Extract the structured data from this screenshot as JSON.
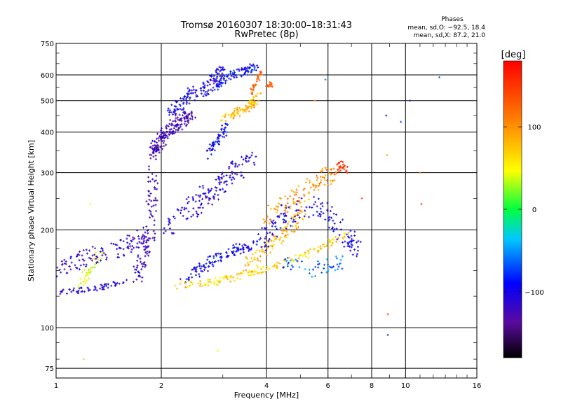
{
  "header": {
    "title_line1": "Tromsø 20160307 18:30:00–18:31:43",
    "title_line2": "RwPretec (8p)",
    "phases_title": "Phases",
    "phases_o": "mean, sd,O: −92.5, 18.4",
    "phases_x": "mean, sd,X: 87.2, 21.0"
  },
  "chart_data": {
    "type": "scatter",
    "xlabel": "Frequency [MHz]",
    "ylabel": "Stationary phase Virtual Height [km]",
    "x_scale": "log",
    "y_scale": "log",
    "xlim": [
      1,
      16
    ],
    "ylim": [
      70,
      750
    ],
    "x_ticks": [
      {
        "value": 1,
        "label": "1"
      },
      {
        "value": 2,
        "label": "2"
      },
      {
        "value": 4,
        "label": "4"
      },
      {
        "value": 6,
        "label": "6"
      },
      {
        "value": 8,
        "label": "8"
      },
      {
        "value": 10,
        "label": "10"
      },
      {
        "value": 16,
        "label": "16"
      }
    ],
    "y_ticks": [
      {
        "value": 75,
        "label": "75"
      },
      {
        "value": 100,
        "label": "100"
      },
      {
        "value": 200,
        "label": "200"
      },
      {
        "value": 300,
        "label": "300"
      },
      {
        "value": 400,
        "label": "400"
      },
      {
        "value": 500,
        "label": "500"
      },
      {
        "value": 600,
        "label": "600"
      },
      {
        "value": 750,
        "label": "750"
      }
    ],
    "grid": true,
    "colorbar": {
      "title": "[deg]",
      "range": [
        -180,
        180
      ],
      "ticks": [
        {
          "value": 100,
          "label": "100"
        },
        {
          "value": 0,
          "label": "0"
        },
        {
          "value": -100,
          "label": "−100"
        }
      ]
    },
    "traces": [
      {
        "x": [
          1.02,
          1.15,
          1.3,
          1.45,
          1.6
        ],
        "y": [
          128,
          130,
          132,
          136,
          140
        ],
        "phase": -110,
        "n": 60,
        "spread": 0.04
      },
      {
        "x": [
          1.15,
          1.25,
          1.35
        ],
        "y": [
          135,
          150,
          170
        ],
        "phase": 40,
        "n": 40,
        "spread": 0.08
      },
      {
        "x": [
          1.0,
          1.2,
          1.5,
          1.8
        ],
        "y": [
          150,
          165,
          175,
          195
        ],
        "phase": -115,
        "n": 120,
        "spread": 0.12
      },
      {
        "x": [
          1.7,
          1.85,
          1.9
        ],
        "y": [
          145,
          190,
          300
        ],
        "phase": -120,
        "n": 110,
        "spread": 0.12
      },
      {
        "x": [
          1.88,
          2.0,
          2.2,
          2.45
        ],
        "y": [
          340,
          380,
          420,
          450
        ],
        "phase": -125,
        "n": 180,
        "spread": 0.1
      },
      {
        "x": [
          2.1,
          2.4,
          2.8,
          3.0
        ],
        "y": [
          450,
          520,
          560,
          620
        ],
        "phase": -100,
        "n": 150,
        "spread": 0.1
      },
      {
        "x": [
          2.9,
          3.2,
          3.5,
          3.75
        ],
        "y": [
          560,
          600,
          620,
          640
        ],
        "phase": -90,
        "n": 80,
        "spread": 0.06
      },
      {
        "x": [
          2.7,
          2.9,
          3.1
        ],
        "y": [
          340,
          380,
          420
        ],
        "phase": -95,
        "n": 60,
        "spread": 0.07
      },
      {
        "x": [
          3.0,
          3.3,
          3.6,
          3.8
        ],
        "y": [
          440,
          460,
          480,
          520
        ],
        "phase": 80,
        "n": 90,
        "spread": 0.06
      },
      {
        "x": [
          3.6,
          3.75,
          3.85
        ],
        "y": [
          530,
          570,
          610
        ],
        "phase": 130,
        "n": 30,
        "spread": 0.04
      },
      {
        "x": [
          4.0,
          4.15
        ],
        "y": [
          540,
          570
        ],
        "phase": 130,
        "n": 15,
        "spread": 0.04
      },
      {
        "x": [
          2.0,
          2.5,
          3.0,
          3.6
        ],
        "y": [
          200,
          240,
          280,
          330
        ],
        "phase": -110,
        "n": 150,
        "spread": 0.15
      },
      {
        "x": [
          2.3,
          2.8,
          3.3,
          3.8
        ],
        "y": [
          140,
          160,
          175,
          180
        ],
        "phase": -95,
        "n": 120,
        "spread": 0.08
      },
      {
        "x": [
          2.2,
          2.8,
          3.5,
          4.2,
          5.0,
          6.0,
          6.8
        ],
        "y": [
          135,
          138,
          145,
          155,
          165,
          180,
          195
        ],
        "phase": 70,
        "n": 160,
        "spread": 0.05
      },
      {
        "x": [
          3.4,
          4.0,
          4.6,
          5.2
        ],
        "y": [
          150,
          175,
          200,
          240
        ],
        "phase": 80,
        "n": 110,
        "spread": 0.1
      },
      {
        "x": [
          4.0,
          4.8,
          5.6,
          6.2
        ],
        "y": [
          220,
          250,
          280,
          300
        ],
        "phase": 100,
        "n": 110,
        "spread": 0.12
      },
      {
        "x": [
          6.2,
          6.6,
          7.0
        ],
        "y": [
          300,
          320,
          290
        ],
        "phase": 150,
        "n": 30,
        "spread": 0.05
      },
      {
        "x": [
          3.8,
          4.5,
          5.5,
          6.5,
          7.3
        ],
        "y": [
          180,
          220,
          240,
          200,
          170
        ],
        "phase": -100,
        "n": 150,
        "spread": 0.15
      },
      {
        "x": [
          4.5,
          5.5,
          6.5
        ],
        "y": [
          160,
          150,
          160
        ],
        "phase": -60,
        "n": 50,
        "spread": 0.1
      }
    ],
    "scatter_points": [
      {
        "x": 8.9,
        "y": 110,
        "phase": 150
      },
      {
        "x": 8.9,
        "y": 95,
        "phase": -80
      },
      {
        "x": 8.8,
        "y": 450,
        "phase": -120
      },
      {
        "x": 9.7,
        "y": 430,
        "phase": -70
      },
      {
        "x": 10.3,
        "y": 500,
        "phase": -110
      },
      {
        "x": 11.0,
        "y": 300,
        "phase": 120
      },
      {
        "x": 11.1,
        "y": 240,
        "phase": 150
      },
      {
        "x": 12.5,
        "y": 590,
        "phase": -60
      },
      {
        "x": 8.85,
        "y": 340,
        "phase": 90
      },
      {
        "x": 5.9,
        "y": 580,
        "phase": -50
      },
      {
        "x": 1.2,
        "y": 80,
        "phase": 30
      },
      {
        "x": 2.9,
        "y": 85,
        "phase": 40
      },
      {
        "x": 1.25,
        "y": 240,
        "phase": 40
      },
      {
        "x": 5.5,
        "y": 500,
        "phase": 100
      },
      {
        "x": 7.5,
        "y": 250,
        "phase": 130
      }
    ]
  }
}
